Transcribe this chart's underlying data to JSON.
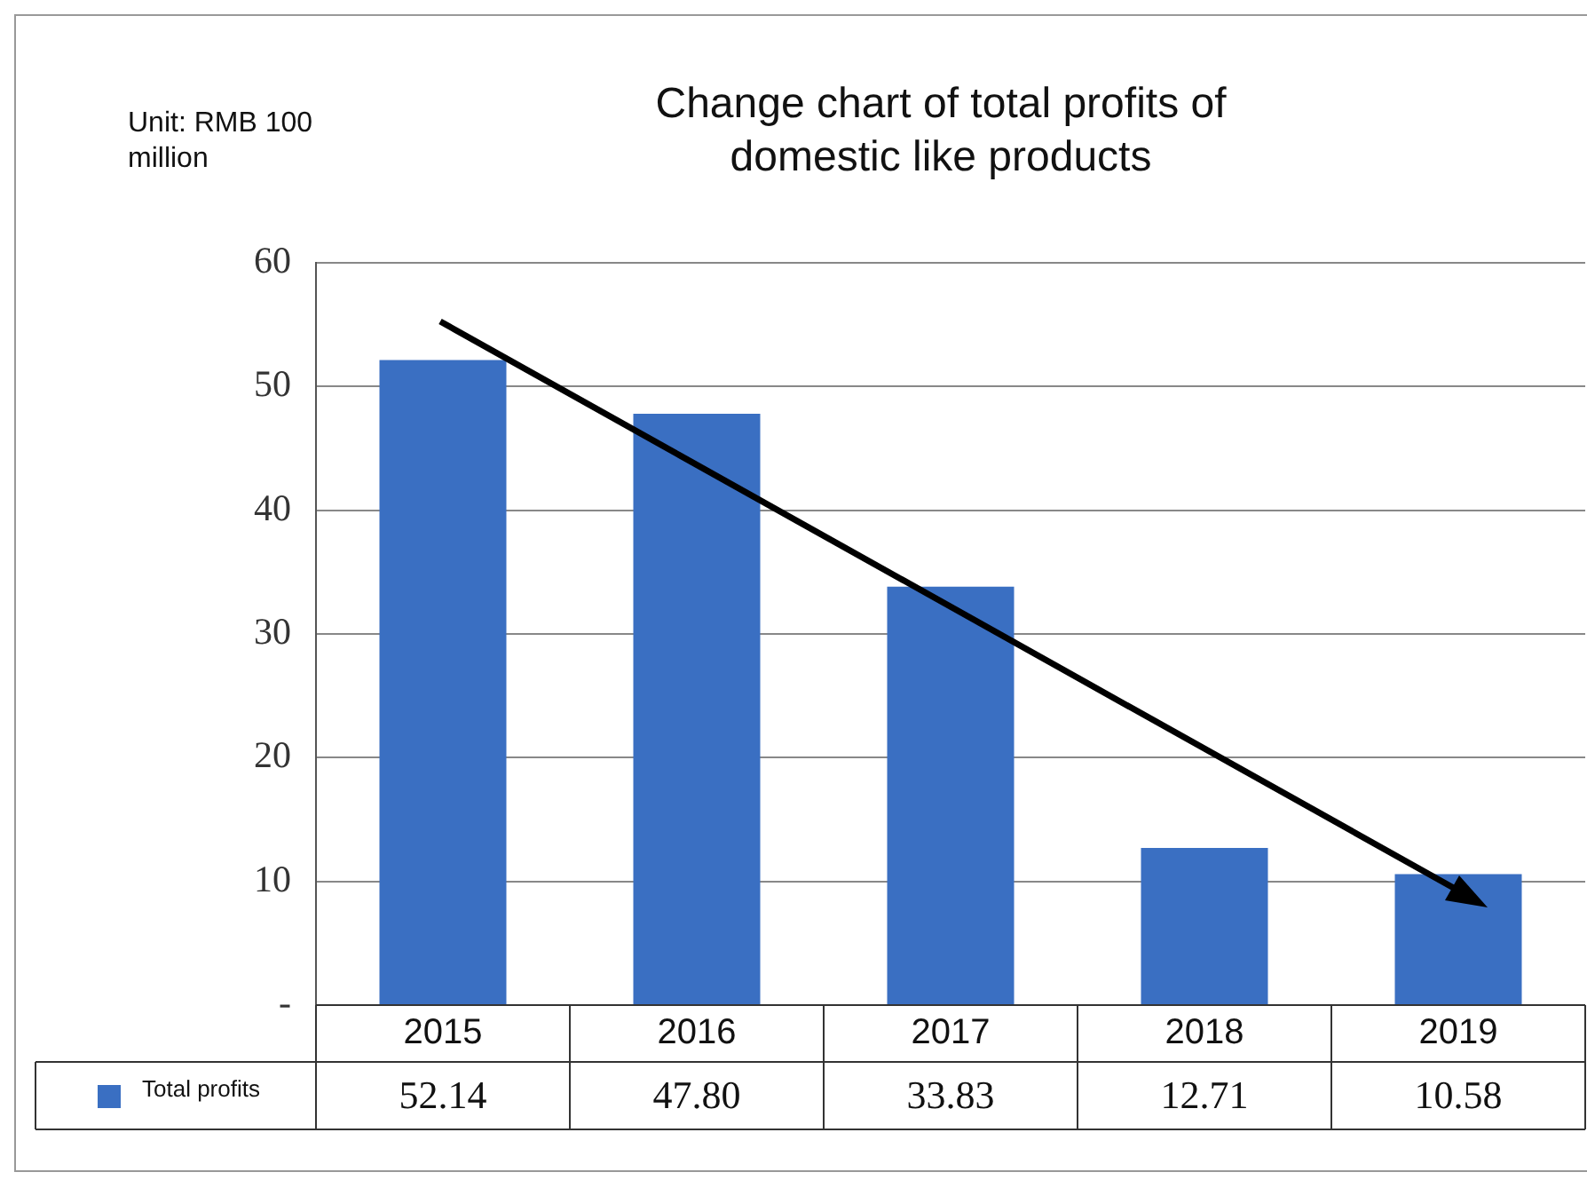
{
  "chart_data": {
    "type": "bar",
    "title": "Change chart of total profits of domestic like products",
    "ylabel": "Unit: RMB 100 million",
    "categories": [
      "2015",
      "2016",
      "2017",
      "2018",
      "2019"
    ],
    "series": [
      {
        "name": "Total profits",
        "color": "#3a6fc2",
        "values": [
          52.14,
          47.8,
          33.83,
          12.71,
          10.58
        ],
        "value_labels": [
          "52.14",
          "47.80",
          "33.83",
          "12.71",
          "10.58"
        ]
      }
    ],
    "ylim": [
      0,
      60
    ],
    "yticks": [
      {
        "value": 0,
        "label": "-"
      },
      10,
      20,
      30,
      40,
      50,
      60
    ],
    "grid": "y",
    "legend": "bottom left"
  }
}
